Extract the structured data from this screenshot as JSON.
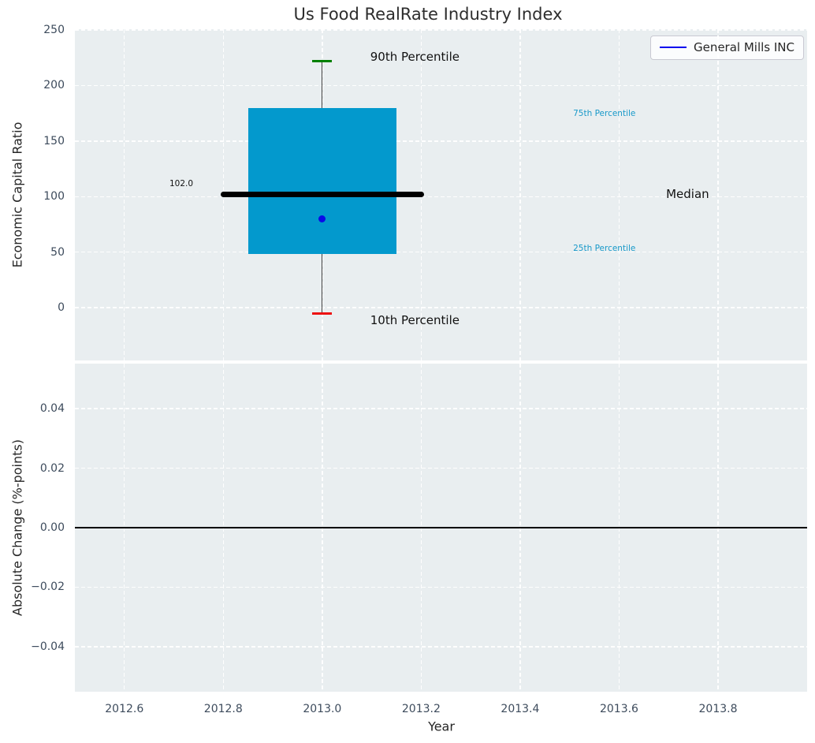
{
  "title": "Us Food RealRate Industry Index",
  "legend": {
    "label": "General Mills INC",
    "line_color": "#0000ee"
  },
  "top_plot": {
    "ylabel": "Economic Capital Ratio"
  },
  "bottom_plot": {
    "ylabel": "Absolute Change (%-points)"
  },
  "xaxis": {
    "label": "Year"
  },
  "colors": {
    "axes_background": "#e9eef0",
    "grid": "#ffffff",
    "tick_label": "#3d4b5c",
    "box_fill": "#0399cd",
    "median_line": "#000000",
    "p90_cap": "#008000",
    "p10_cap": "#ed1111",
    "whisker": "#3f3f3f",
    "point": "#0a0ae8",
    "percentile_label": "#1899c9"
  },
  "chart_data": [
    {
      "type": "box",
      "title": "Us Food RealRate Industry Index",
      "ylabel": "Economic Capital Ratio",
      "xlabel": "Year",
      "grid": true,
      "legend_position": "upper right",
      "xlim": [
        2012.5,
        2013.98
      ],
      "ylim": [
        -47.5,
        250.7
      ],
      "yticks": [
        0,
        50,
        100,
        150,
        200,
        250
      ],
      "ytick_labels": [
        "0",
        "50",
        "100",
        "150",
        "200",
        "250"
      ],
      "xticks": [
        2012.6,
        2012.8,
        2013.0,
        2013.2,
        2013.4,
        2013.6,
        2013.8
      ],
      "box": {
        "x_center": 2013.0,
        "p10": -5,
        "p25": 48,
        "median": 102,
        "p75": 180,
        "p90": 222,
        "box_x": [
          2012.85,
          2013.15
        ],
        "median_x": [
          2012.795,
          2013.205
        ],
        "cap_half_width": 0.02,
        "median_value_label": "102.0"
      },
      "series": [
        {
          "name": "General Mills INC",
          "x": 2013.0,
          "y": 80,
          "marker": "circle",
          "color": "#0a0ae8"
        }
      ],
      "annotations": [
        {
          "text": "90th Percentile",
          "x": 2013.097,
          "y": 226,
          "align": "left",
          "size": 15,
          "color": "#111111"
        },
        {
          "text": "10th Percentile",
          "x": 2013.097,
          "y": -11.5,
          "align": "left",
          "size": 15,
          "color": "#111111"
        },
        {
          "text": "75th Percentile",
          "x": 2013.507,
          "y": 175,
          "align": "left",
          "size": 10.5,
          "color": "#1899c9"
        },
        {
          "text": "25th Percentile",
          "x": 2013.507,
          "y": 53,
          "align": "left",
          "size": 10.5,
          "color": "#1899c9"
        },
        {
          "text": "Median",
          "x": 2013.695,
          "y": 102,
          "align": "left",
          "size": 15,
          "color": "#111111"
        },
        {
          "text": "102.0",
          "x": 2012.739,
          "y": 111.5,
          "align": "right",
          "size": 10.5,
          "color": "#111111"
        }
      ]
    },
    {
      "type": "line",
      "ylabel": "Absolute Change (%-points)",
      "xlabel": "Year",
      "grid": true,
      "xlim": [
        2012.5,
        2013.98
      ],
      "ylim": [
        -0.0551,
        0.0551
      ],
      "yticks": [
        -0.04,
        -0.02,
        0.0,
        0.02,
        0.04
      ],
      "ytick_labels": [
        "−0.04",
        "−0.02",
        "0.00",
        "0.02",
        "0.04"
      ],
      "xticks": [
        2012.6,
        2012.8,
        2013.0,
        2013.2,
        2013.4,
        2013.6,
        2013.8
      ],
      "xtick_labels": [
        "2012.6",
        "2012.8",
        "2013.0",
        "2013.2",
        "2013.4",
        "2013.6",
        "2013.8"
      ],
      "zero_line": {
        "y": 0.0,
        "color": "#000000"
      }
    }
  ]
}
